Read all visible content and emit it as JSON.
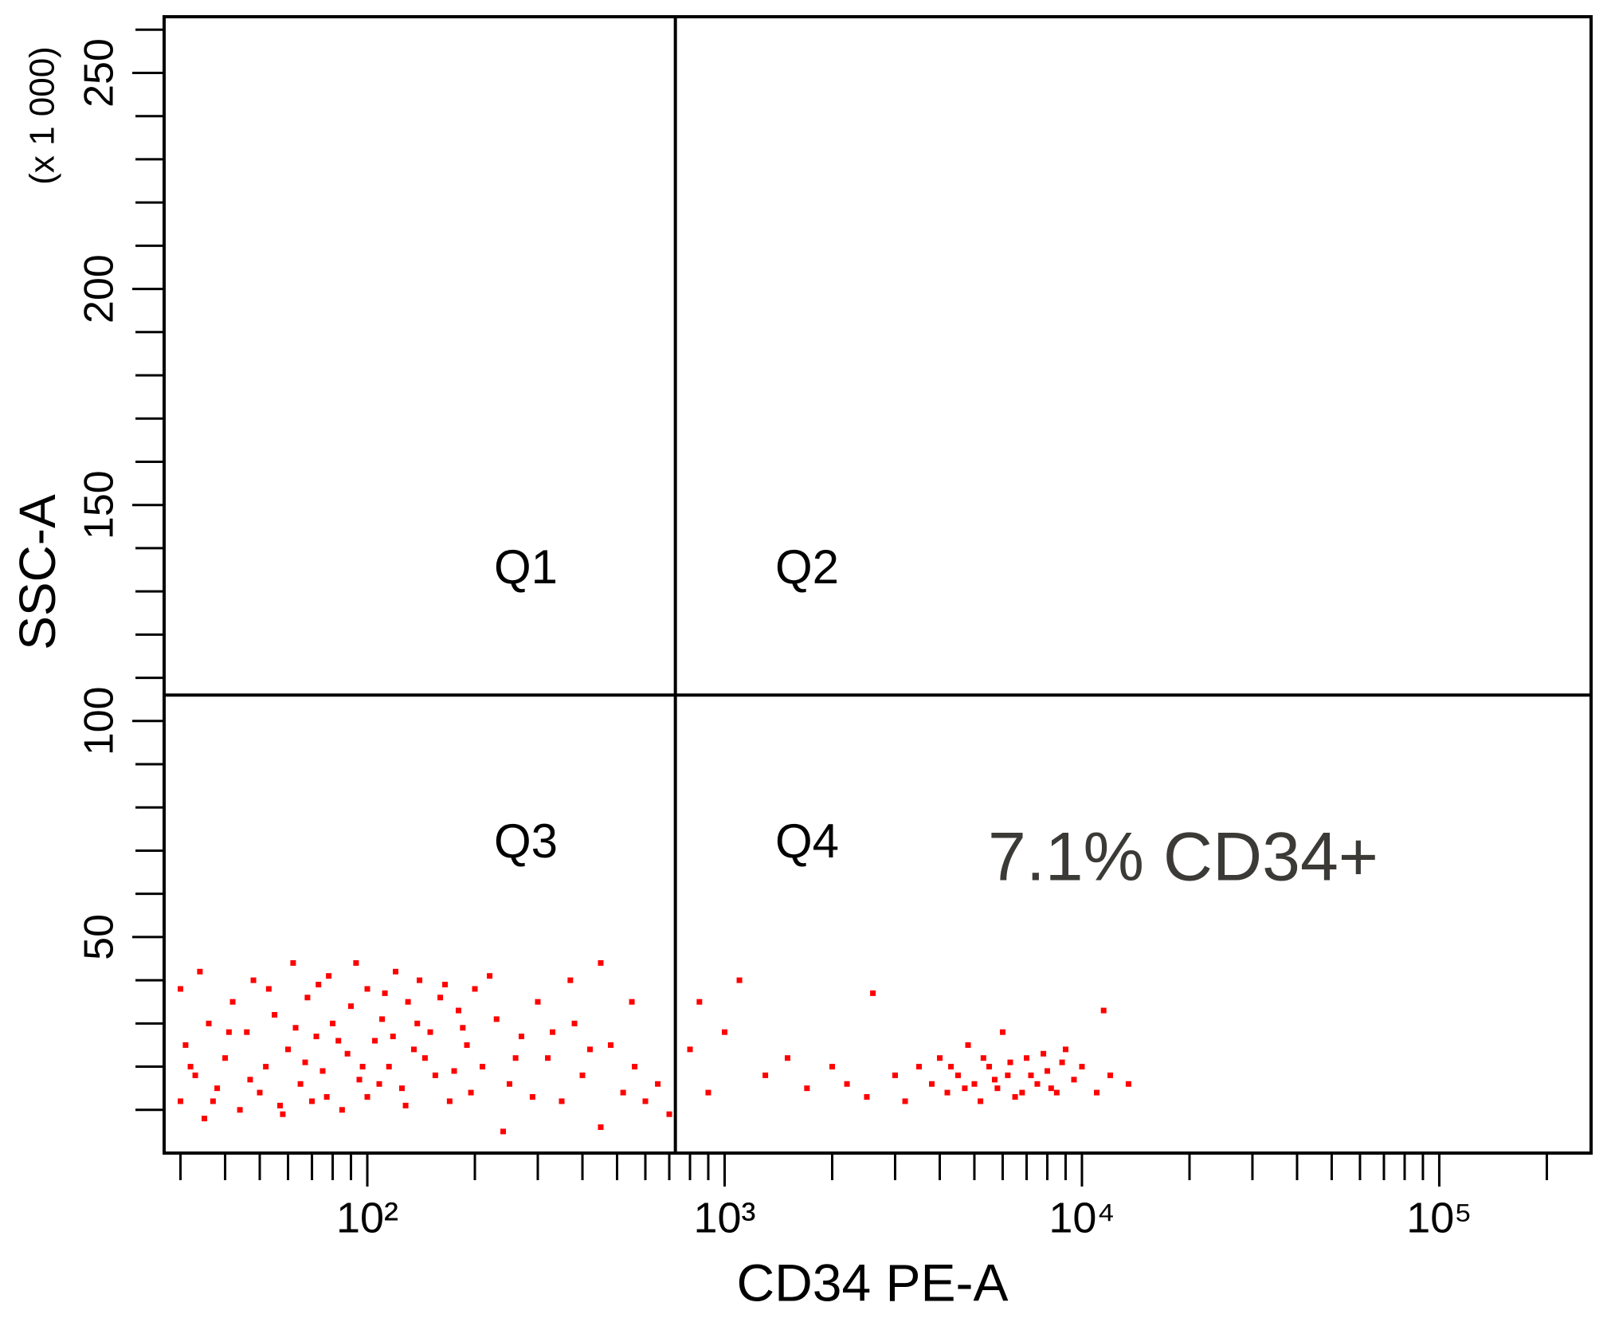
{
  "chart_data": {
    "type": "scatter",
    "x_label": "CD34 PE-A",
    "y_label": "SSC-A",
    "y_multiplier_label": "(x 1 000)",
    "annotation": "7.1% CD34+",
    "quadrant_labels": [
      "Q1",
      "Q2",
      "Q3",
      "Q4"
    ],
    "quadrant_x": 728,
    "quadrant_y": 106,
    "xscale": "log",
    "xlim": [
      27,
      266000
    ],
    "ylim": [
      0,
      263
    ],
    "xticks": [
      {
        "value": 100,
        "label": "10²"
      },
      {
        "value": 1000,
        "label": "10³"
      },
      {
        "value": 10000,
        "label": "10⁴"
      },
      {
        "value": 100000,
        "label": "10⁵"
      }
    ],
    "xminorticks": [
      30,
      40,
      50,
      60,
      70,
      80,
      90,
      200,
      300,
      400,
      500,
      600,
      700,
      800,
      900,
      2000,
      3000,
      4000,
      5000,
      6000,
      7000,
      8000,
      9000,
      20000,
      30000,
      40000,
      50000,
      60000,
      70000,
      80000,
      90000,
      200000
    ],
    "yticks": [
      50,
      100,
      150,
      200,
      250
    ],
    "yminorticks": [
      10,
      20,
      30,
      40,
      60,
      70,
      80,
      90,
      110,
      120,
      130,
      140,
      160,
      170,
      180,
      190,
      210,
      220,
      230,
      240,
      260
    ],
    "color": "#ff0000",
    "x": [
      30,
      30,
      31,
      33,
      34,
      35,
      36,
      38,
      40,
      42,
      44,
      46,
      48,
      50,
      52,
      55,
      58,
      60,
      62,
      65,
      68,
      70,
      72,
      75,
      78,
      80,
      85,
      88,
      90,
      95,
      100,
      100,
      105,
      110,
      115,
      120,
      125,
      130,
      135,
      140,
      150,
      155,
      160,
      170,
      180,
      190,
      200,
      210,
      230,
      250,
      270,
      300,
      320,
      350,
      380,
      400,
      450,
      480,
      520,
      560,
      600,
      650,
      700,
      240,
      450,
      32,
      37,
      41,
      47,
      53,
      57,
      63,
      67,
      73,
      77,
      83,
      93,
      97,
      108,
      112,
      118,
      128,
      138,
      145,
      165,
      175,
      185,
      195,
      220,
      260,
      290,
      330,
      370,
      420,
      550,
      800,
      850,
      900,
      1000,
      1100,
      1300,
      1500,
      1700,
      2000,
      2200,
      2500,
      2600,
      3000,
      3200,
      3500,
      3800,
      4000,
      4200,
      4500,
      4800,
      5000,
      5200,
      5500,
      5800,
      6000,
      6200,
      6500,
      7000,
      7500,
      8000,
      8500,
      9000,
      9500,
      10000,
      11000,
      11500,
      12000,
      13500,
      4300,
      4700,
      5300,
      5700,
      6300,
      6800,
      7200,
      7800,
      8200,
      8800
    ],
    "values": [
      12,
      38,
      25,
      18,
      42,
      8,
      30,
      15,
      22,
      35,
      10,
      28,
      40,
      14,
      20,
      32,
      9,
      24,
      44,
      16,
      36,
      12,
      27,
      19,
      41,
      30,
      10,
      23,
      34,
      17,
      38,
      13,
      26,
      31,
      20,
      42,
      15,
      35,
      24,
      40,
      28,
      18,
      36,
      12,
      33,
      25,
      38,
      20,
      31,
      16,
      27,
      35,
      22,
      12,
      30,
      18,
      44,
      25,
      14,
      20,
      12,
      16,
      9,
      5,
      6,
      20,
      12,
      28,
      17,
      38,
      11,
      29,
      21,
      39,
      13,
      26,
      44,
      20,
      16,
      37,
      27,
      11,
      30,
      22,
      39,
      19,
      29,
      14,
      41,
      22,
      13,
      28,
      40,
      24,
      35,
      24,
      35,
      14,
      28,
      40,
      18,
      22,
      15,
      20,
      16,
      13,
      37,
      18,
      12,
      20,
      16,
      22,
      14,
      18,
      25,
      16,
      12,
      20,
      15,
      28,
      18,
      13,
      22,
      16,
      19,
      14,
      24,
      17,
      20,
      14,
      33,
      18,
      16,
      20,
      15,
      22,
      17,
      21,
      14,
      18,
      23,
      15,
      21
    ]
  }
}
